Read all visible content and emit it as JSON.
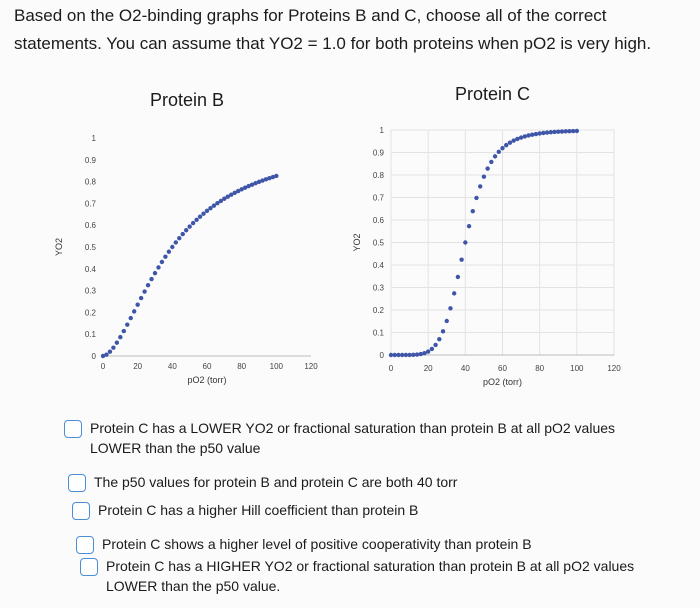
{
  "question": {
    "text": "Based on the O2-binding graphs for Proteins B and C, choose all of the correct statements. You can assume that YO2 = 1.0 for both proteins when pO2 is very high."
  },
  "chart_data": [
    {
      "type": "scatter",
      "title": "Protein B",
      "xlabel": "pO2 (torr)",
      "ylabel": "YO2",
      "xlim": [
        0,
        120
      ],
      "ylim": [
        0,
        1
      ],
      "x_ticks": [
        "0",
        "20",
        "40",
        "60",
        "80",
        "100",
        "120"
      ],
      "y_ticks": [
        "0",
        "0.1",
        "0.2",
        "0.3",
        "0.4",
        "0.5",
        "0.6",
        "0.7",
        "0.8",
        "0.9",
        "1"
      ],
      "grid": false,
      "marker_color": "#3f56a8",
      "curve": {
        "model": "hill",
        "p50": 40,
        "n": 1.7,
        "x_max": 100,
        "step": 2
      }
    },
    {
      "type": "scatter",
      "title": "Protein C",
      "xlabel": "pO2 (torr)",
      "ylabel": "YO2",
      "xlim": [
        0,
        120
      ],
      "ylim": [
        0,
        1
      ],
      "x_ticks": [
        "0",
        "20",
        "40",
        "60",
        "80",
        "100",
        "120"
      ],
      "y_ticks": [
        "0",
        "0.1",
        "0.2",
        "0.3",
        "0.4",
        "0.5",
        "0.6",
        "0.7",
        "0.8",
        "0.9",
        "1"
      ],
      "grid": true,
      "marker_color": "#3f56a8",
      "curve": {
        "model": "hill",
        "p50": 40,
        "n": 6,
        "x_max": 100,
        "step": 2
      }
    }
  ],
  "options": [
    "Protein C has a LOWER YO2 or fractional saturation than protein B at all pO2 values LOWER than the p50 value",
    "The p50 values for protein B and protein C are both 40 torr",
    "Protein C has a higher Hill coefficient than protein B",
    "Protein C shows a higher level of positive cooperativity than protein B",
    "Protein C has a HIGHER YO2 or fractional saturation than protein B at all pO2 values LOWER than the p50 value."
  ]
}
